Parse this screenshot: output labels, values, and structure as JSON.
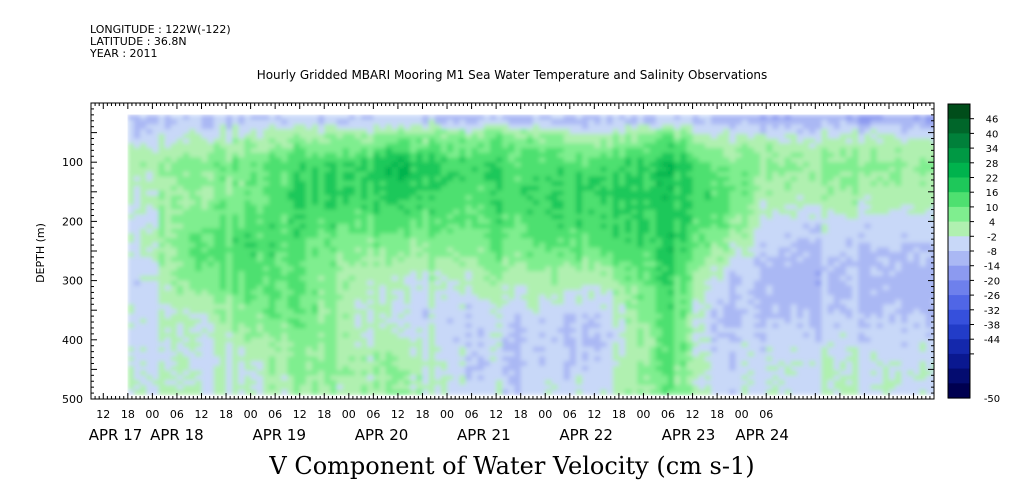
{
  "meta": {
    "longitude": "LONGITUDE : 122W(-122)",
    "latitude": "LATITUDE : 36.8N",
    "year": "YEAR : 2011"
  },
  "chart_data": {
    "type": "heatmap",
    "title": "Hourly Gridded MBARI Mooring M1 Sea Water Temperature and Salinity Observations",
    "xlabel": "V Component of Water Velocity (cm s-1)",
    "ylabel": "DEPTH (m)",
    "xlim_hours": [
      -15,
      191
    ],
    "data_start_hour": -6,
    "ylim": [
      500,
      0
    ],
    "y_ticks": [
      100,
      200,
      300,
      400,
      500
    ],
    "x_hour_ticks": [
      "12",
      "18",
      "00",
      "06",
      "12",
      "18",
      "00",
      "06",
      "12",
      "18",
      "00",
      "06",
      "12",
      "18",
      "00",
      "06",
      "12",
      "18",
      "00",
      "06",
      "12",
      "18",
      "00",
      "06",
      "12",
      "18",
      "00",
      "06"
    ],
    "x_date_labels": [
      "APR 17",
      "APR 18",
      "APR 19",
      "APR 20",
      "APR 21",
      "APR 22",
      "APR 23",
      "APR 24"
    ],
    "x_date_label_hours": [
      -9,
      6,
      31,
      56,
      81,
      106,
      131,
      149
    ],
    "colorbar_levels": [
      "46",
      "40",
      "34",
      "28",
      "22",
      "16",
      "10",
      "4",
      "-2",
      "-8",
      "-14",
      "-20",
      "-26",
      "-32",
      "-38",
      "-44",
      "-50"
    ],
    "colorbar_colors": [
      "#004d1a",
      "#00662a",
      "#00803a",
      "#009944",
      "#00b34d",
      "#1ec85a",
      "#4ee070",
      "#7fee8f",
      "#b0f0b0",
      "#c8d8f8",
      "#aab8f4",
      "#8c9af0",
      "#6e80ec",
      "#5066e6",
      "#3650dc",
      "#223cc8",
      "#1428ac",
      "#0a1890",
      "#040c70",
      "#000050"
    ],
    "v_velocity_sample": {
      "depths": [
        25,
        50,
        100,
        150,
        200,
        250,
        300,
        350,
        400,
        450,
        480
      ],
      "by_time": [
        {
          "time": "APR 17 18",
          "values": [
            -10,
            -6,
            2,
            -2,
            -4,
            -4,
            -6,
            -4,
            -4,
            -2,
            -2
          ]
        },
        {
          "time": "APR 18 12",
          "values": [
            -10,
            -4,
            6,
            2,
            8,
            10,
            6,
            -2,
            -4,
            -4,
            -2
          ]
        },
        {
          "time": "APR 19 00",
          "values": [
            -8,
            -2,
            10,
            8,
            12,
            14,
            12,
            8,
            2,
            -2,
            -2
          ]
        },
        {
          "time": "APR 19 12",
          "values": [
            -6,
            2,
            14,
            18,
            14,
            10,
            10,
            10,
            6,
            6,
            2
          ]
        },
        {
          "time": "APR 20 12",
          "values": [
            -8,
            4,
            20,
            16,
            10,
            2,
            -4,
            -6,
            -2,
            2,
            2
          ]
        },
        {
          "time": "APR 21 12",
          "values": [
            -10,
            8,
            14,
            14,
            12,
            8,
            2,
            -4,
            -6,
            -8,
            -6
          ]
        },
        {
          "time": "APR 22 12",
          "values": [
            -10,
            -2,
            12,
            16,
            14,
            8,
            -2,
            -8,
            -10,
            -6,
            -4
          ]
        },
        {
          "time": "APR 23 05",
          "values": [
            -6,
            10,
            22,
            20,
            20,
            18,
            16,
            14,
            12,
            12,
            10
          ]
        },
        {
          "time": "APR 23 18",
          "values": [
            -10,
            -4,
            8,
            12,
            10,
            2,
            -6,
            -10,
            -8,
            -6,
            -6
          ]
        },
        {
          "time": "APR 24 06",
          "values": [
            -12,
            -2,
            6,
            2,
            -4,
            -8,
            -10,
            -8,
            -4,
            -2,
            -2
          ]
        }
      ]
    }
  }
}
